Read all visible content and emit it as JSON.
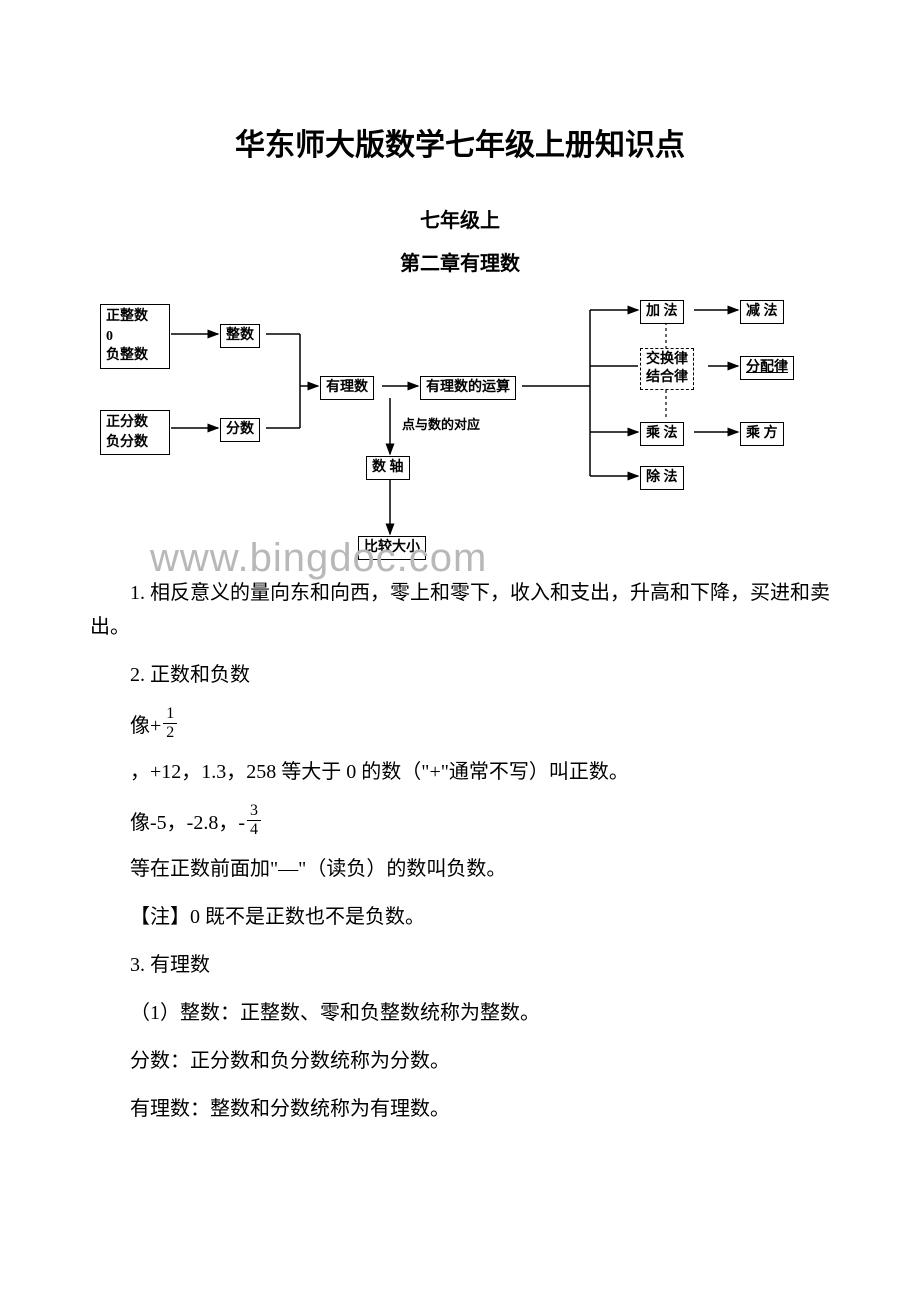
{
  "title": "华东师大版数学七年级上册知识点",
  "subtitle": "七年级上",
  "chapter": "第二章有理数",
  "watermark": "www.bingdoc.com",
  "diagram": {
    "nodes": {
      "group_int": "正整数\n0\n负整数",
      "integer": "整数",
      "rational": "有理数",
      "ops": "有理数的运算",
      "group_frac": "正分数\n负分数",
      "fraction": "分数",
      "point_num": "点与数的对应",
      "number_line": "数 轴",
      "compare": "比较大小",
      "add": "加 法",
      "sub": "减 法",
      "laws": "交换律\n结合律",
      "distrib": "分配律",
      "mul": "乘 法",
      "pow": "乘 方",
      "div": "除 法"
    },
    "colors": {
      "border": "#000000",
      "text": "#000000",
      "bg": "#ffffff"
    }
  },
  "body": {
    "p1": "1. 相反意义的量向东和向西，零上和零下，收入和支出，升高和下降，买进和卖出。",
    "p2": "2. 正数和负数",
    "p3_prefix": "像+",
    "frac1_num": "1",
    "frac1_den": "2",
    "p4": "，+12，1.3，258 等大于 0 的数（\"+\"通常不写）叫正数。",
    "p5_prefix": "像-5，-2.8，-",
    "frac2_num": "3",
    "frac2_den": "4",
    "p6": "等在正数前面加\"—\"（读负）的数叫负数。",
    "p7": "【注】0 既不是正数也不是负数。",
    "p8": "3. 有理数",
    "p9": "（1）整数：正整数、零和负整数统称为整数。",
    "p10": "分数：正分数和负分数统称为分数。",
    "p11": "有理数：整数和分数统称为有理数。"
  }
}
